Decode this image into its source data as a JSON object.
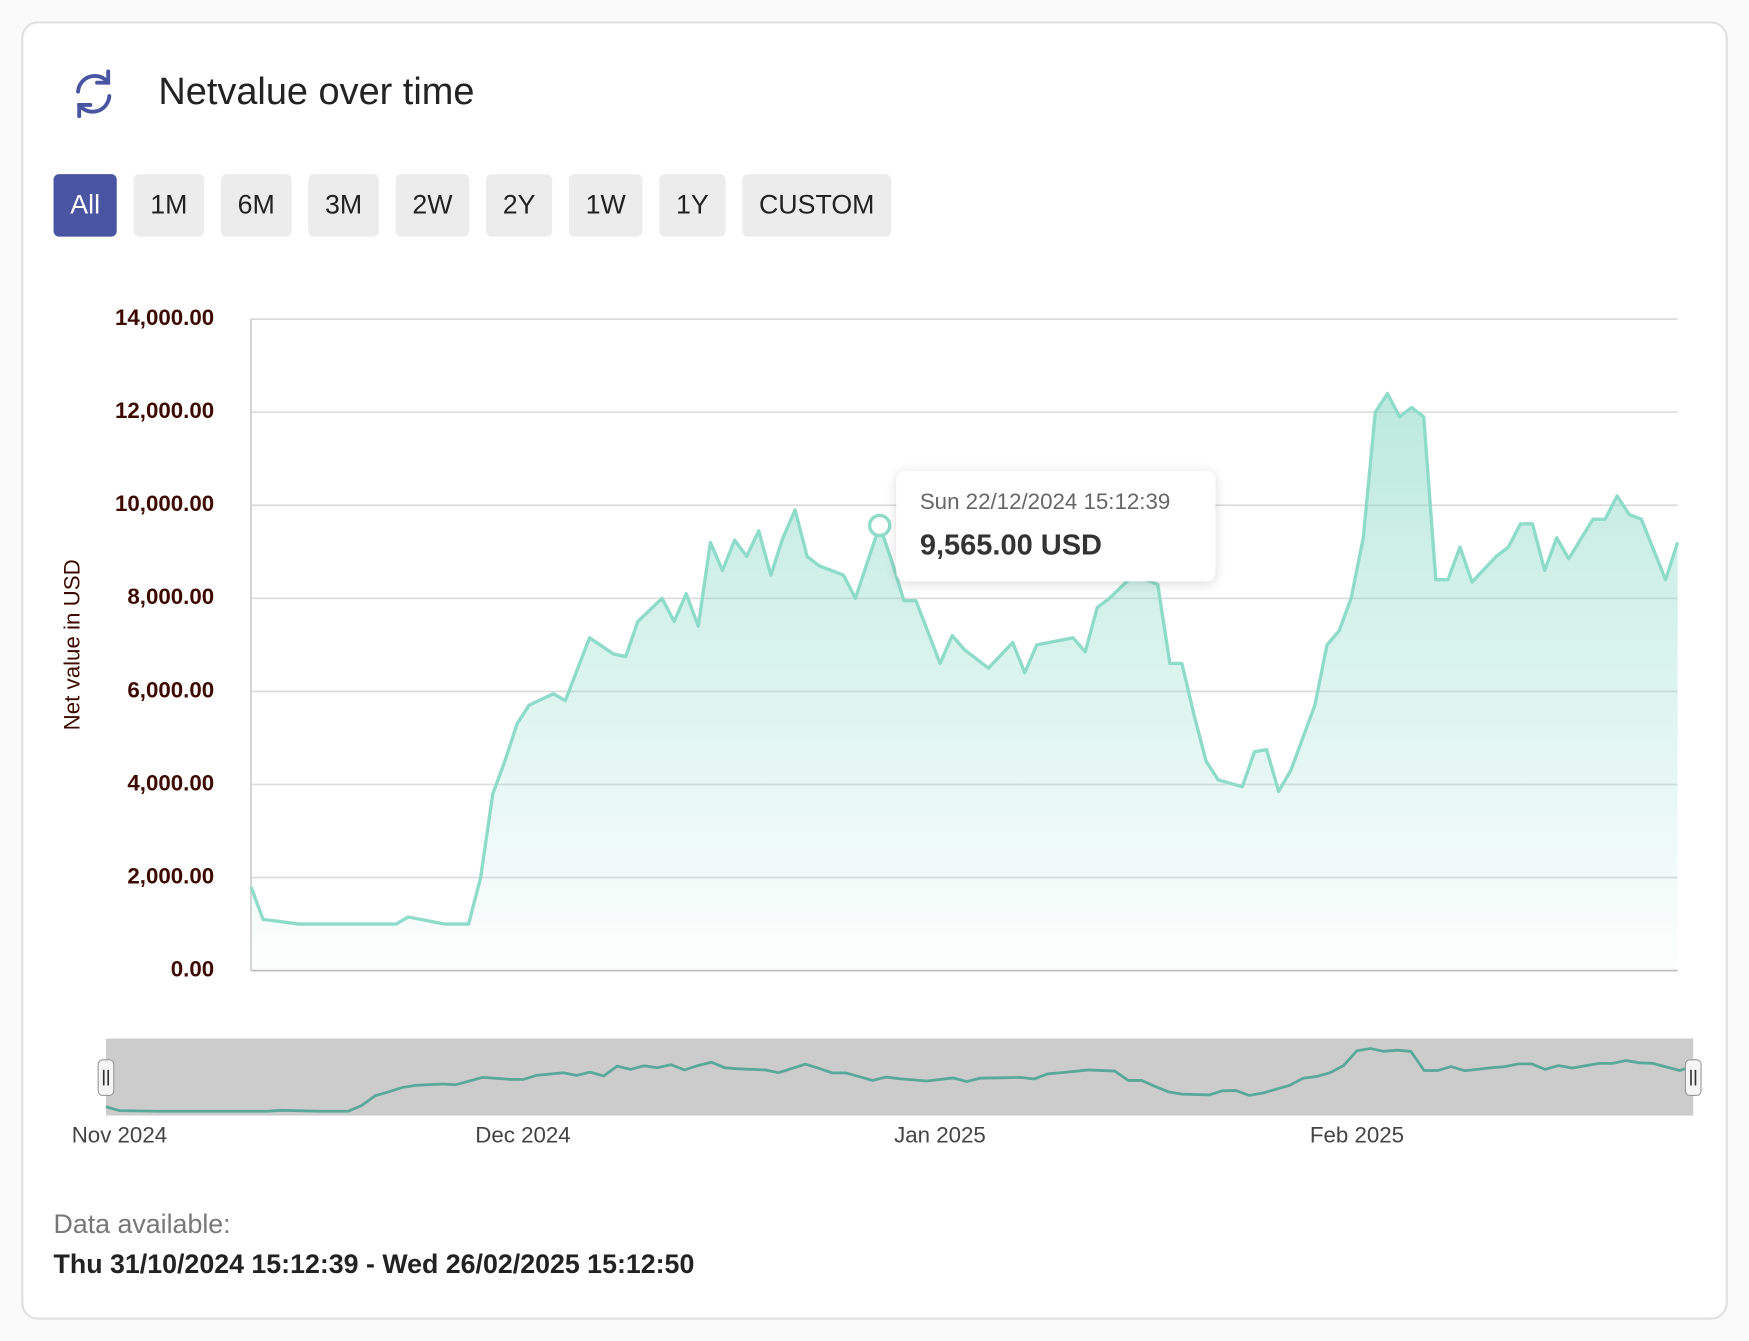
{
  "header": {
    "title": "Netvalue over time"
  },
  "range_buttons": [
    {
      "label": "All",
      "active": true
    },
    {
      "label": "1M",
      "active": false
    },
    {
      "label": "6M",
      "active": false
    },
    {
      "label": "3M",
      "active": false
    },
    {
      "label": "2W",
      "active": false
    },
    {
      "label": "2Y",
      "active": false
    },
    {
      "label": "1W",
      "active": false
    },
    {
      "label": "1Y",
      "active": false
    },
    {
      "label": "CUSTOM",
      "active": false
    }
  ],
  "chart_data": {
    "type": "area",
    "y_label": "Net value in USD",
    "color": "#8edbc9",
    "navigator_color": "#5aa89a",
    "grid": true,
    "ylim": [
      0,
      14000
    ],
    "yticks": [
      {
        "value": 0,
        "label": "0.00"
      },
      {
        "value": 2000,
        "label": "2,000.00"
      },
      {
        "value": 4000,
        "label": "4,000.00"
      },
      {
        "value": 6000,
        "label": "6,000.00"
      },
      {
        "value": 8000,
        "label": "8,000.00"
      },
      {
        "value": 10000,
        "label": "10,000.00"
      },
      {
        "value": 12000,
        "label": "12,000.00"
      },
      {
        "value": 14000,
        "label": "14,000.00"
      }
    ],
    "xticks": [
      {
        "value": "2024-11-01",
        "label": "Nov 2024"
      },
      {
        "value": "2024-12-01",
        "label": "Dec 2024"
      },
      {
        "value": "2025-01-01",
        "label": "Jan 2025"
      },
      {
        "value": "2025-02-01",
        "label": "Feb 2025"
      }
    ],
    "x": [
      "2024-10-31",
      "2024-11-01",
      "2024-11-04",
      "2024-11-12",
      "2024-11-13",
      "2024-11-16",
      "2024-11-18",
      "2024-11-19",
      "2024-11-20",
      "2024-11-21",
      "2024-11-22",
      "2024-11-23",
      "2024-11-25",
      "2024-11-26",
      "2024-11-28",
      "2024-11-30",
      "2024-12-01",
      "2024-12-02",
      "2024-12-04",
      "2024-12-05",
      "2024-12-06",
      "2024-12-07",
      "2024-12-08",
      "2024-12-09",
      "2024-12-10",
      "2024-12-11",
      "2024-12-12",
      "2024-12-13",
      "2024-12-14",
      "2024-12-15",
      "2024-12-16",
      "2024-12-17",
      "2024-12-19",
      "2024-12-20",
      "2024-12-22",
      "2024-12-23",
      "2024-12-24",
      "2024-12-25",
      "2024-12-27",
      "2024-12-28",
      "2024-12-29",
      "2024-12-31",
      "2025-01-02",
      "2025-01-03",
      "2025-01-04",
      "2025-01-07",
      "2025-01-08",
      "2025-01-09",
      "2025-01-10",
      "2025-01-12",
      "2025-01-14",
      "2025-01-15",
      "2025-01-16",
      "2025-01-17",
      "2025-01-18",
      "2025-01-19",
      "2025-01-21",
      "2025-01-22",
      "2025-01-23",
      "2025-01-24",
      "2025-01-25",
      "2025-01-27",
      "2025-01-28",
      "2025-01-29",
      "2025-01-30",
      "2025-01-31",
      "2025-02-01",
      "2025-02-02",
      "2025-02-03",
      "2025-02-04",
      "2025-02-05",
      "2025-02-06",
      "2025-02-07",
      "2025-02-08",
      "2025-02-09",
      "2025-02-11",
      "2025-02-12",
      "2025-02-13",
      "2025-02-14",
      "2025-02-15",
      "2025-02-16",
      "2025-02-17",
      "2025-02-19",
      "2025-02-20",
      "2025-02-21",
      "2025-02-22",
      "2025-02-23",
      "2025-02-25",
      "2025-02-26"
    ],
    "values": [
      1800,
      1100,
      1000,
      1000,
      1150,
      1000,
      1000,
      2000,
      3800,
      4500,
      5300,
      5700,
      5950,
      5800,
      7150,
      6800,
      6750,
      7500,
      8000,
      7500,
      8100,
      7400,
      9200,
      8600,
      9250,
      8900,
      9450,
      8500,
      9300,
      9900,
      8900,
      8700,
      8500,
      8000,
      9565,
      8800,
      7950,
      7950,
      6600,
      7200,
      6900,
      6500,
      7050,
      6400,
      7000,
      7150,
      6850,
      7800,
      8000,
      8500,
      8300,
      6600,
      6600,
      5500,
      4500,
      4100,
      3950,
      4700,
      4750,
      3850,
      4300,
      5700,
      7000,
      7300,
      8000,
      9300,
      12000,
      12400,
      11900,
      12100,
      11900,
      8400,
      8400,
      9100,
      8350,
      8900,
      9100,
      9600,
      9600,
      8600,
      9300,
      8850,
      9700,
      9700,
      10200,
      9800,
      9700,
      8400,
      9200
    ],
    "tooltip": {
      "x": "2024-12-22",
      "value": 9565,
      "label": "Sun 22/12/2024 15:12:39",
      "value_label": "9,565.00 USD"
    }
  },
  "footer": {
    "label": "Data available:",
    "range": "Thu 31/10/2024 15:12:39 - Wed 26/02/2025 15:12:50"
  }
}
